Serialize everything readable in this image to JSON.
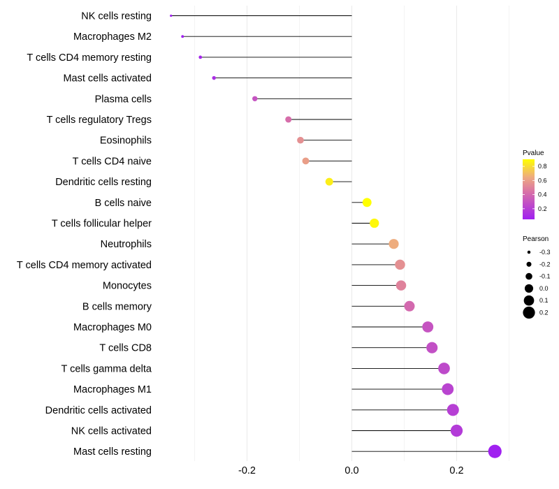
{
  "chart_data": {
    "type": "lollipop",
    "categories": [
      "NK cells resting",
      "Macrophages M2",
      "T cells CD4 memory resting",
      "Mast cells activated",
      "Plasma cells",
      "T cells regulatory  Tregs",
      "Eosinophils",
      "T cells CD4 naive",
      "Dendritic cells resting",
      "B cells naive",
      "T cells follicular helper",
      "Neutrophils",
      "T cells CD4 memory activated",
      "Monocytes",
      "B cells memory",
      "Macrophages M0",
      "T cells CD8",
      "T cells gamma delta",
      "Macrophages M1",
      "Dendritic cells activated",
      "NK cells activated",
      "Mast cells resting"
    ],
    "pearson": [
      -0.345,
      -0.323,
      -0.289,
      -0.263,
      -0.185,
      -0.121,
      -0.098,
      -0.088,
      -0.043,
      0.029,
      0.043,
      0.08,
      0.092,
      0.094,
      0.11,
      0.145,
      0.153,
      0.176,
      0.183,
      0.193,
      0.2,
      0.273
    ],
    "pvalue": [
      0.06,
      0.05,
      0.08,
      0.12,
      0.3,
      0.42,
      0.55,
      0.6,
      0.85,
      0.9,
      0.88,
      0.65,
      0.55,
      0.5,
      0.4,
      0.3,
      0.28,
      0.25,
      0.22,
      0.2,
      0.18,
      0.05
    ],
    "xaxis": {
      "ticks": [
        -0.2,
        0.0,
        0.2
      ],
      "tick_labels": [
        "-0.2",
        "0.0",
        "0.2"
      ],
      "xlim": [
        -0.37,
        0.3
      ]
    },
    "grid": true,
    "legend_color": {
      "title": "Pvalue",
      "ticks": [
        0.2,
        0.4,
        0.6,
        0.8
      ],
      "tick_labels": [
        "0.2",
        "0.4",
        "0.6",
        "0.8"
      ],
      "range": [
        0.05,
        0.9
      ],
      "low_color": "#a020f0",
      "high_color": "#ffff00"
    },
    "legend_size": {
      "title": "Pearson",
      "values": [
        -0.3,
        -0.2,
        -0.1,
        0.0,
        0.1,
        0.2
      ],
      "labels": [
        "-0.3",
        "-0.2",
        "-0.1",
        "0.0",
        "0.1",
        "0.2"
      ]
    },
    "colors": {
      "stem": "#000000",
      "grid": "#ebebeb",
      "text": "#000000"
    }
  }
}
